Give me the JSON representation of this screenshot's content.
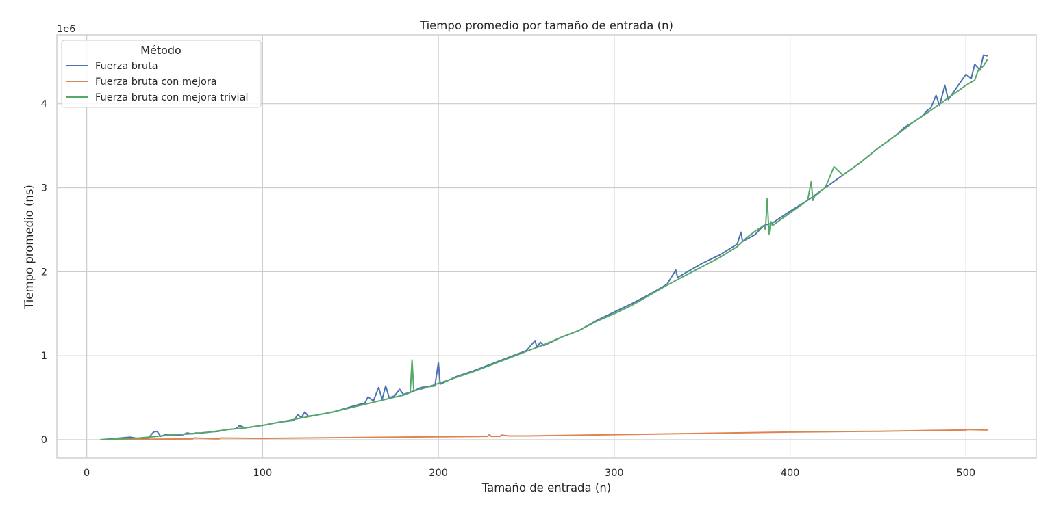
{
  "chart_data": {
    "type": "line",
    "title": "Tiempo promedio por tamaño de entrada (n)",
    "xlabel": "Tamaño de entrada (n)",
    "ylabel": "Tiempo promedio (ns)",
    "y_offset_label": "1e6",
    "xlim": [
      -17,
      540
    ],
    "ylim": [
      -0.22,
      4.82
    ],
    "y_unit_multiplier": 1000000,
    "x_ticks": [
      0,
      100,
      200,
      300,
      400,
      500
    ],
    "y_ticks": [
      0,
      1,
      2,
      3,
      4
    ],
    "x_tick_labels": [
      "0",
      "100",
      "200",
      "300",
      "400",
      "500"
    ],
    "y_tick_labels": [
      "0",
      "1",
      "2",
      "3",
      "4"
    ],
    "grid": true,
    "legend": {
      "title": "Método",
      "position": "top-left"
    },
    "series": [
      {
        "name": "Fuerza bruta",
        "color": "#4c72b0",
        "x": [
          8,
          25,
          30,
          35,
          38,
          40,
          42,
          45,
          50,
          55,
          57,
          60,
          62,
          65,
          70,
          75,
          80,
          85,
          87,
          90,
          100,
          110,
          118,
          120,
          122,
          124,
          126,
          130,
          140,
          150,
          155,
          158,
          160,
          163,
          166,
          168,
          170,
          172,
          175,
          178,
          180,
          185,
          190,
          198,
          200,
          201,
          210,
          220,
          230,
          240,
          250,
          255,
          256,
          258,
          260,
          270,
          280,
          290,
          300,
          310,
          320,
          330,
          335,
          336,
          340,
          350,
          360,
          370,
          372,
          373,
          380,
          385,
          390,
          400,
          410,
          420,
          430,
          440,
          450,
          460,
          465,
          470,
          475,
          478,
          480,
          483,
          485,
          488,
          490,
          495,
          500,
          503,
          505,
          508,
          510,
          512
        ],
        "y": [
          0.0,
          0.03,
          0.01,
          0.02,
          0.09,
          0.1,
          0.04,
          0.06,
          0.05,
          0.06,
          0.08,
          0.07,
          0.08,
          0.08,
          0.09,
          0.1,
          0.12,
          0.13,
          0.17,
          0.14,
          0.17,
          0.21,
          0.23,
          0.3,
          0.26,
          0.33,
          0.28,
          0.29,
          0.33,
          0.39,
          0.42,
          0.43,
          0.51,
          0.46,
          0.62,
          0.48,
          0.64,
          0.5,
          0.52,
          0.6,
          0.54,
          0.57,
          0.62,
          0.64,
          0.92,
          0.66,
          0.75,
          0.82,
          0.9,
          0.98,
          1.06,
          1.18,
          1.1,
          1.16,
          1.12,
          1.22,
          1.3,
          1.42,
          1.52,
          1.62,
          1.73,
          1.85,
          2.02,
          1.93,
          1.98,
          2.1,
          2.2,
          2.33,
          2.47,
          2.36,
          2.44,
          2.55,
          2.58,
          2.72,
          2.85,
          3.0,
          3.15,
          3.3,
          3.47,
          3.62,
          3.72,
          3.78,
          3.85,
          3.92,
          3.95,
          4.1,
          3.98,
          4.22,
          4.05,
          4.2,
          4.35,
          4.3,
          4.47,
          4.4,
          4.58,
          4.57
        ]
      },
      {
        "name": "Fuerza bruta con mejora",
        "color": "#dd8452",
        "x": [
          8,
          60,
          61,
          75,
          76,
          100,
          150,
          200,
          228,
          229,
          230,
          235,
          236,
          240,
          250,
          300,
          350,
          400,
          450,
          480,
          500,
          501,
          512
        ],
        "y": [
          0.0,
          0.01,
          0.02,
          0.01,
          0.02,
          0.015,
          0.025,
          0.035,
          0.04,
          0.06,
          0.04,
          0.04,
          0.055,
          0.045,
          0.045,
          0.06,
          0.075,
          0.09,
          0.1,
          0.11,
          0.115,
          0.12,
          0.115
        ]
      },
      {
        "name": "Fuerza bruta con mejora trivial",
        "color": "#55a868",
        "x": [
          8,
          30,
          40,
          50,
          60,
          70,
          80,
          90,
          100,
          110,
          120,
          130,
          140,
          150,
          160,
          170,
          180,
          184,
          185,
          186,
          190,
          200,
          210,
          220,
          230,
          240,
          250,
          260,
          270,
          280,
          290,
          300,
          310,
          320,
          330,
          340,
          350,
          360,
          370,
          375,
          380,
          385,
          386,
          387,
          388,
          389,
          390,
          400,
          410,
          412,
          413,
          414,
          420,
          425,
          430,
          440,
          450,
          460,
          470,
          480,
          490,
          500,
          505,
          507,
          510,
          512
        ],
        "y": [
          0.0,
          0.02,
          0.04,
          0.06,
          0.07,
          0.09,
          0.12,
          0.14,
          0.17,
          0.21,
          0.25,
          0.29,
          0.33,
          0.38,
          0.43,
          0.48,
          0.53,
          0.56,
          0.95,
          0.58,
          0.6,
          0.67,
          0.74,
          0.81,
          0.89,
          0.97,
          1.05,
          1.13,
          1.22,
          1.3,
          1.41,
          1.5,
          1.6,
          1.72,
          1.84,
          1.95,
          2.06,
          2.17,
          2.3,
          2.4,
          2.48,
          2.55,
          2.5,
          2.87,
          2.45,
          2.6,
          2.55,
          2.7,
          2.85,
          3.07,
          2.85,
          2.9,
          3.0,
          3.25,
          3.15,
          3.3,
          3.47,
          3.62,
          3.78,
          3.92,
          4.07,
          4.22,
          4.28,
          4.4,
          4.45,
          4.52
        ]
      }
    ]
  }
}
